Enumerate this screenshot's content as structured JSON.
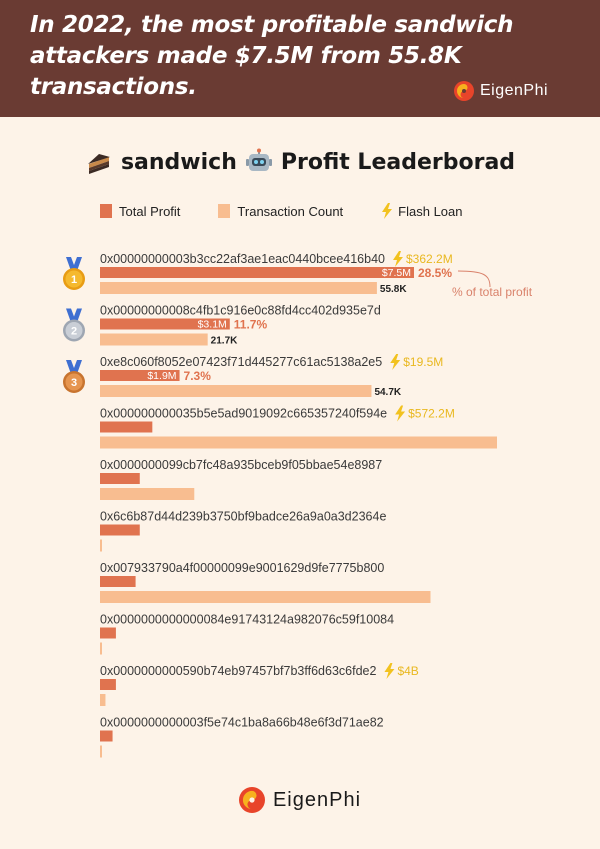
{
  "header": {
    "title": "In 2022, the most profitable sandwich attackers made $7.5M from 55.8K transactions.",
    "brand": "EigenPhi"
  },
  "chart_title": {
    "part1": "sandwich",
    "part2": "Profit Leaderborad",
    "icon1": "sandwich-icon",
    "icon2": "robot-icon"
  },
  "legend": {
    "profit": "Total Profit",
    "count": "Transaction Count",
    "flash": "Flash Loan"
  },
  "footer": {
    "brand": "EigenPhi"
  },
  "colors": {
    "profit": "#e0734f",
    "count": "#f8bd90",
    "flash": "#f2c21f",
    "header_bg": "#6a3b33",
    "page_bg": "#fdf3e8",
    "annotation": "#d9826b"
  },
  "chart_data": {
    "type": "bar",
    "title": "sandwich Profit Leaderborad",
    "annotation": "% of total profit",
    "series": [
      {
        "name": "Total Profit",
        "unit": "$M"
      },
      {
        "name": "Transaction Count",
        "unit": "K"
      },
      {
        "name": "Flash Loan"
      }
    ],
    "rows": [
      {
        "address": "0x00000000003b3cc22af3ae1eac0440bcee416b40",
        "rank": 1,
        "medal": "gold-medal-icon",
        "profit": 7.5,
        "profit_label": "$7.5M",
        "percent": "28.5%",
        "count": 55.8,
        "count_label": "55.8K",
        "flash_loan": "$362.2M"
      },
      {
        "address": "0x00000000008c4fb1c916e0c88fd4cc402d935e7d",
        "rank": 2,
        "medal": "silver-medal-icon",
        "profit": 3.1,
        "profit_label": "$3.1M",
        "percent": "11.7%",
        "count": 21.7,
        "count_label": "21.7K",
        "flash_loan": ""
      },
      {
        "address": "0xe8c060f8052e07423f71d445277c61ac5138a2e5",
        "rank": 3,
        "medal": "bronze-medal-icon",
        "profit": 1.9,
        "profit_label": "$1.9M",
        "percent": "7.3%",
        "count": 54.7,
        "count_label": "54.7K",
        "flash_loan": "$19.5M"
      },
      {
        "address": "0x000000000035b5e5ad9019092c665357240f594e",
        "profit": 1.25,
        "count": 80.0,
        "flash_loan": "$572.2M"
      },
      {
        "address": "0x0000000099cb7fc48a935bceb9f05bbae54e8987",
        "profit": 0.95,
        "count": 19.0,
        "flash_loan": ""
      },
      {
        "address": "0x6c6b87d44d239b3750bf9badce26a9a0a3d2364e",
        "profit": 0.95,
        "count": 0.3,
        "flash_loan": ""
      },
      {
        "address": "0x007933790a4f00000099e9001629d9fe7775b800",
        "profit": 0.85,
        "count": 66.6,
        "flash_loan": ""
      },
      {
        "address": "0x0000000000000084e91743124a982076c59f10084",
        "profit": 0.38,
        "count": 0.3,
        "flash_loan": ""
      },
      {
        "address": "0x0000000000590b74eb97457bf7b3ff6d63c6fde2",
        "profit": 0.38,
        "count": 1.1,
        "flash_loan": "$4B"
      },
      {
        "address": "0x0000000000003f5e74c1ba8a66b48e6f3d71ae82",
        "profit": 0.3,
        "count": 0.3,
        "flash_loan": ""
      }
    ],
    "profit_axis_max": 7.5,
    "count_axis_max": 80.0
  }
}
